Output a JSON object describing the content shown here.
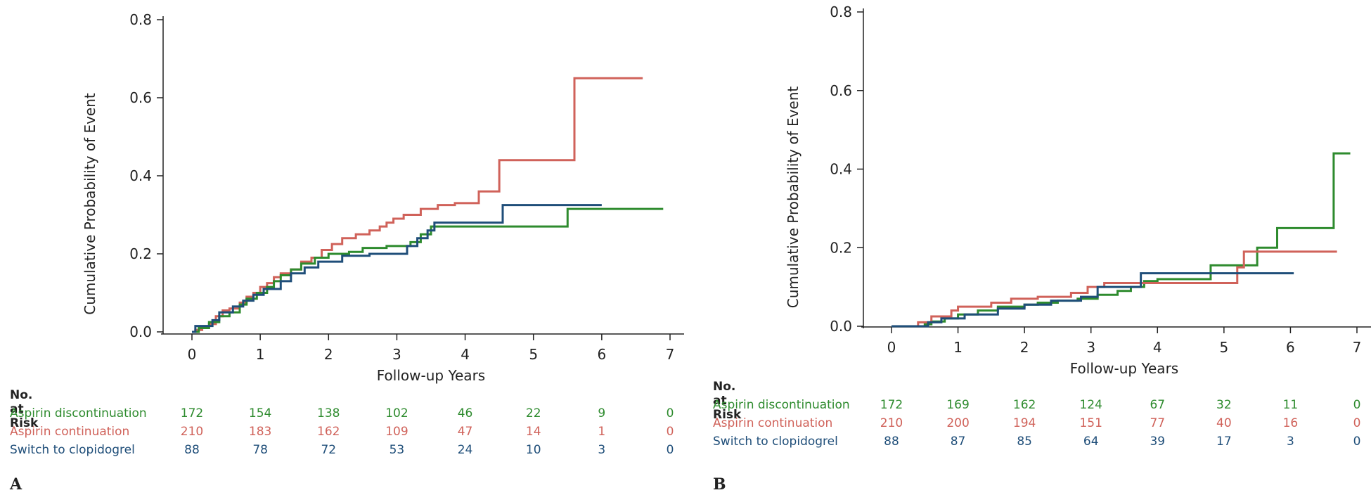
{
  "colors": {
    "aspirin_discontinuation": "#2e8b2e",
    "aspirin_continuation": "#d0625a",
    "switch_to_clopidogrel": "#1f4e79",
    "axis": "#222222"
  },
  "risk_table_title": "No. at Risk",
  "chart_data": [
    {
      "type": "line",
      "step": true,
      "panel_label": "A",
      "xlabel": "Follow-up Years",
      "ylabel": "Cumulative Probability of Event",
      "xlim": [
        0,
        7
      ],
      "ylim": [
        0,
        0.8
      ],
      "xticks": [
        0,
        1,
        2,
        3,
        4,
        5,
        6,
        7
      ],
      "yticks": [
        "0.0",
        "0.2",
        "0.4",
        "0.6",
        "0.8"
      ],
      "grid": false,
      "series": [
        {
          "name": "Aspirin continuation",
          "color": "#d0625a",
          "points": [
            [
              0,
              0
            ],
            [
              0.05,
              0.005
            ],
            [
              0.15,
              0.01
            ],
            [
              0.25,
              0.02
            ],
            [
              0.35,
              0.04
            ],
            [
              0.45,
              0.055
            ],
            [
              0.55,
              0.06
            ],
            [
              0.7,
              0.075
            ],
            [
              0.8,
              0.09
            ],
            [
              0.9,
              0.1
            ],
            [
              1.0,
              0.115
            ],
            [
              1.1,
              0.125
            ],
            [
              1.2,
              0.14
            ],
            [
              1.3,
              0.15
            ],
            [
              1.45,
              0.16
            ],
            [
              1.6,
              0.18
            ],
            [
              1.75,
              0.19
            ],
            [
              1.9,
              0.21
            ],
            [
              2.05,
              0.225
            ],
            [
              2.2,
              0.24
            ],
            [
              2.4,
              0.25
            ],
            [
              2.6,
              0.26
            ],
            [
              2.75,
              0.27
            ],
            [
              2.85,
              0.28
            ],
            [
              2.95,
              0.29
            ],
            [
              3.1,
              0.3
            ],
            [
              3.35,
              0.315
            ],
            [
              3.6,
              0.325
            ],
            [
              3.85,
              0.33
            ],
            [
              4.2,
              0.36
            ],
            [
              4.5,
              0.44
            ],
            [
              5.6,
              0.65
            ],
            [
              6.6,
              0.65
            ]
          ]
        },
        {
          "name": "Aspirin discontinuation",
          "color": "#2e8b2e",
          "points": [
            [
              0,
              0
            ],
            [
              0.1,
              0.01
            ],
            [
              0.25,
              0.025
            ],
            [
              0.4,
              0.04
            ],
            [
              0.55,
              0.05
            ],
            [
              0.7,
              0.07
            ],
            [
              0.8,
              0.085
            ],
            [
              0.95,
              0.1
            ],
            [
              1.1,
              0.115
            ],
            [
              1.2,
              0.13
            ],
            [
              1.3,
              0.145
            ],
            [
              1.45,
              0.16
            ],
            [
              1.6,
              0.175
            ],
            [
              1.8,
              0.19
            ],
            [
              2.0,
              0.2
            ],
            [
              2.3,
              0.205
            ],
            [
              2.5,
              0.215
            ],
            [
              2.85,
              0.22
            ],
            [
              3.2,
              0.23
            ],
            [
              3.35,
              0.25
            ],
            [
              3.5,
              0.27
            ],
            [
              4.5,
              0.27
            ],
            [
              5.5,
              0.27
            ],
            [
              5.5,
              0.315
            ],
            [
              6.9,
              0.315
            ]
          ]
        },
        {
          "name": "Switch to clopidogrel",
          "color": "#1f4e79",
          "points": [
            [
              0,
              0
            ],
            [
              0.05,
              0.015
            ],
            [
              0.3,
              0.03
            ],
            [
              0.4,
              0.05
            ],
            [
              0.6,
              0.065
            ],
            [
              0.75,
              0.08
            ],
            [
              0.9,
              0.095
            ],
            [
              1.05,
              0.11
            ],
            [
              1.3,
              0.13
            ],
            [
              1.45,
              0.15
            ],
            [
              1.65,
              0.165
            ],
            [
              1.85,
              0.18
            ],
            [
              2.2,
              0.195
            ],
            [
              2.6,
              0.2
            ],
            [
              3.15,
              0.22
            ],
            [
              3.3,
              0.24
            ],
            [
              3.45,
              0.26
            ],
            [
              3.55,
              0.28
            ],
            [
              4.5,
              0.28
            ],
            [
              4.55,
              0.325
            ],
            [
              6.0,
              0.325
            ]
          ]
        }
      ],
      "risk_table": {
        "times": [
          0,
          1,
          2,
          3,
          4,
          5,
          6,
          7
        ],
        "rows": [
          {
            "label": "Aspirin discontinuation",
            "values": [
              "172",
              "154",
              "138",
              "102",
              "46",
              "22",
              "9",
              "0"
            ]
          },
          {
            "label": "Aspirin continuation",
            "values": [
              "210",
              "183",
              "162",
              "109",
              "47",
              "14",
              "1",
              "0"
            ]
          },
          {
            "label": "Switch to clopidogrel",
            "values": [
              "88",
              "78",
              "72",
              "53",
              "24",
              "10",
              "3",
              "0"
            ]
          }
        ]
      }
    },
    {
      "type": "line",
      "step": true,
      "panel_label": "B",
      "xlabel": "Follow-up Years",
      "ylabel": "Cumulative Probability of Event",
      "xlim": [
        0,
        7
      ],
      "ylim": [
        0,
        0.8
      ],
      "xticks": [
        0,
        1,
        2,
        3,
        4,
        5,
        6,
        7
      ],
      "yticks": [
        "0.0",
        "0.2",
        "0.4",
        "0.6",
        "0.8"
      ],
      "grid": false,
      "series": [
        {
          "name": "Aspirin discontinuation",
          "color": "#2e8b2e",
          "points": [
            [
              0,
              0
            ],
            [
              0.5,
              0.005
            ],
            [
              0.6,
              0.012
            ],
            [
              0.8,
              0.02
            ],
            [
              1.0,
              0.03
            ],
            [
              1.3,
              0.04
            ],
            [
              1.6,
              0.05
            ],
            [
              2.0,
              0.055
            ],
            [
              2.2,
              0.06
            ],
            [
              2.5,
              0.065
            ],
            [
              2.8,
              0.07
            ],
            [
              3.1,
              0.08
            ],
            [
              3.4,
              0.09
            ],
            [
              3.6,
              0.1
            ],
            [
              3.8,
              0.115
            ],
            [
              4.0,
              0.12
            ],
            [
              4.8,
              0.155
            ],
            [
              5.5,
              0.2
            ],
            [
              5.8,
              0.25
            ],
            [
              6.65,
              0.44
            ],
            [
              6.9,
              0.44
            ]
          ]
        },
        {
          "name": "Aspirin continuation",
          "color": "#d0625a",
          "points": [
            [
              0,
              0
            ],
            [
              0.4,
              0.01
            ],
            [
              0.6,
              0.025
            ],
            [
              0.9,
              0.04
            ],
            [
              1.0,
              0.05
            ],
            [
              1.5,
              0.06
            ],
            [
              1.8,
              0.07
            ],
            [
              2.2,
              0.075
            ],
            [
              2.7,
              0.085
            ],
            [
              2.95,
              0.1
            ],
            [
              3.2,
              0.11
            ],
            [
              3.8,
              0.11
            ],
            [
              4.2,
              0.11
            ],
            [
              5.0,
              0.11
            ],
            [
              5.2,
              0.15
            ],
            [
              5.3,
              0.19
            ],
            [
              6.7,
              0.19
            ]
          ]
        },
        {
          "name": "Switch to clopidogrel",
          "color": "#1f4e79",
          "points": [
            [
              0,
              0
            ],
            [
              0.55,
              0.01
            ],
            [
              0.75,
              0.02
            ],
            [
              1.1,
              0.03
            ],
            [
              1.6,
              0.045
            ],
            [
              2.0,
              0.055
            ],
            [
              2.4,
              0.065
            ],
            [
              2.85,
              0.075
            ],
            [
              3.1,
              0.1
            ],
            [
              3.5,
              0.1
            ],
            [
              3.75,
              0.135
            ],
            [
              4.5,
              0.135
            ],
            [
              5.2,
              0.135
            ],
            [
              6.05,
              0.135
            ]
          ]
        }
      ],
      "risk_table": {
        "times": [
          0,
          1,
          2,
          3,
          4,
          5,
          6,
          7
        ],
        "rows": [
          {
            "label": "Aspirin discontinuation",
            "values": [
              "172",
              "169",
              "162",
              "124",
              "67",
              "32",
              "11",
              "0"
            ]
          },
          {
            "label": "Aspirin continuation",
            "values": [
              "210",
              "200",
              "194",
              "151",
              "77",
              "40",
              "16",
              "0"
            ]
          },
          {
            "label": "Switch to clopidogrel",
            "values": [
              "88",
              "87",
              "85",
              "64",
              "39",
              "17",
              "3",
              "0"
            ]
          }
        ]
      }
    }
  ]
}
